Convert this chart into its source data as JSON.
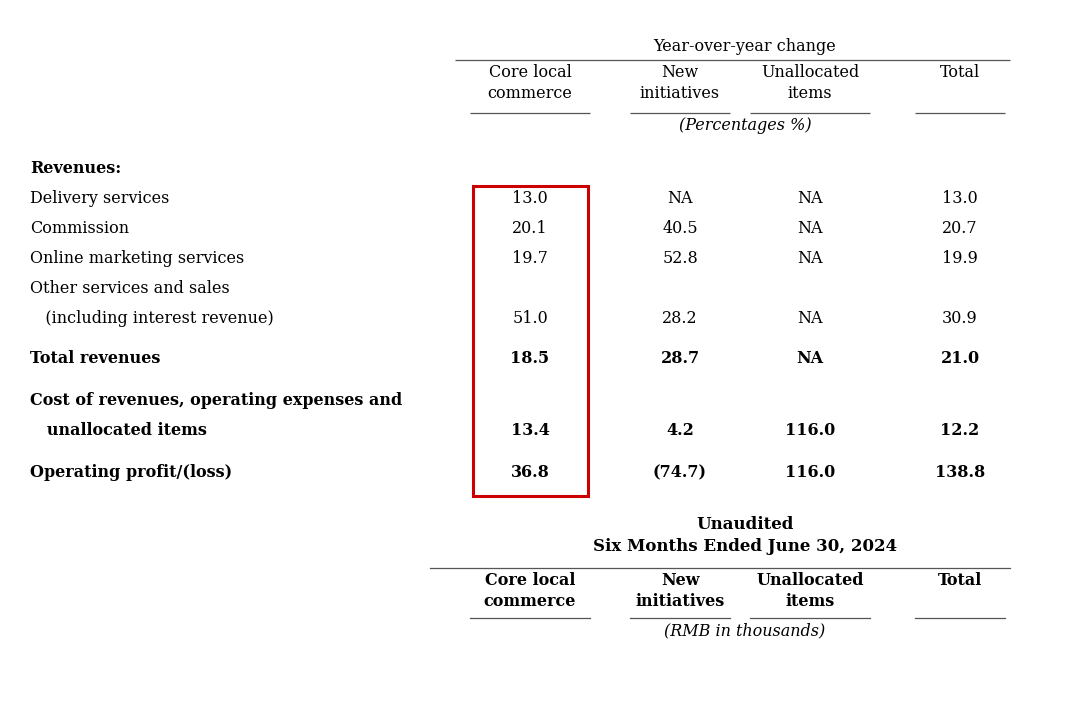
{
  "background_color": "#ffffff",
  "fig_width": 10.8,
  "fig_height": 7.12,
  "section1_title": "Year-over-year change",
  "section1_subtitle": "(Percentages %)",
  "col_headers": [
    "Core local\ncommerce",
    "New\ninitiatives",
    "Unallocated\nitems",
    "Total"
  ],
  "rows": [
    {
      "label": "Revenues:",
      "bold": true,
      "indent": false,
      "values": [
        null,
        null,
        null,
        null
      ]
    },
    {
      "label": "Delivery services",
      "bold": false,
      "indent": false,
      "values": [
        "13.0",
        "NA",
        "NA",
        "13.0"
      ]
    },
    {
      "label": "Commission",
      "bold": false,
      "indent": false,
      "values": [
        "20.1",
        "40.5",
        "NA",
        "20.7"
      ]
    },
    {
      "label": "Online marketing services",
      "bold": false,
      "indent": false,
      "values": [
        "19.7",
        "52.8",
        "NA",
        "19.9"
      ]
    },
    {
      "label": "Other services and sales",
      "bold": false,
      "indent": false,
      "values": [
        null,
        null,
        null,
        null
      ]
    },
    {
      "label": "   (including interest revenue)",
      "bold": false,
      "indent": true,
      "values": [
        "51.0",
        "28.2",
        "NA",
        "30.9"
      ]
    },
    {
      "label": "Total revenues",
      "bold": true,
      "indent": false,
      "values": [
        "18.5",
        "28.7",
        "NA",
        "21.0"
      ]
    },
    {
      "label": "Cost of revenues, operating expenses and",
      "bold": true,
      "indent": false,
      "values": [
        null,
        null,
        null,
        null
      ]
    },
    {
      "label": "   unallocated items",
      "bold": true,
      "indent": true,
      "values": [
        "13.4",
        "4.2",
        "116.0",
        "12.2"
      ]
    },
    {
      "label": "Operating profit/(loss)",
      "bold": true,
      "indent": false,
      "values": [
        "36.8",
        "(74.7)",
        "116.0",
        "138.8"
      ]
    }
  ],
  "section2_title_line1": "Unaudited",
  "section2_title_line2": "Six Months Ended June 30, 2024",
  "section2_subtitle": "(RMB in thousands)",
  "col_headers2": [
    "Core local\ncommerce",
    "New\ninitiatives",
    "Unallocated\nitems",
    "Total"
  ],
  "red_box_color": "#cc0000",
  "font_size": 11.5,
  "font_family": "DejaVu Serif"
}
